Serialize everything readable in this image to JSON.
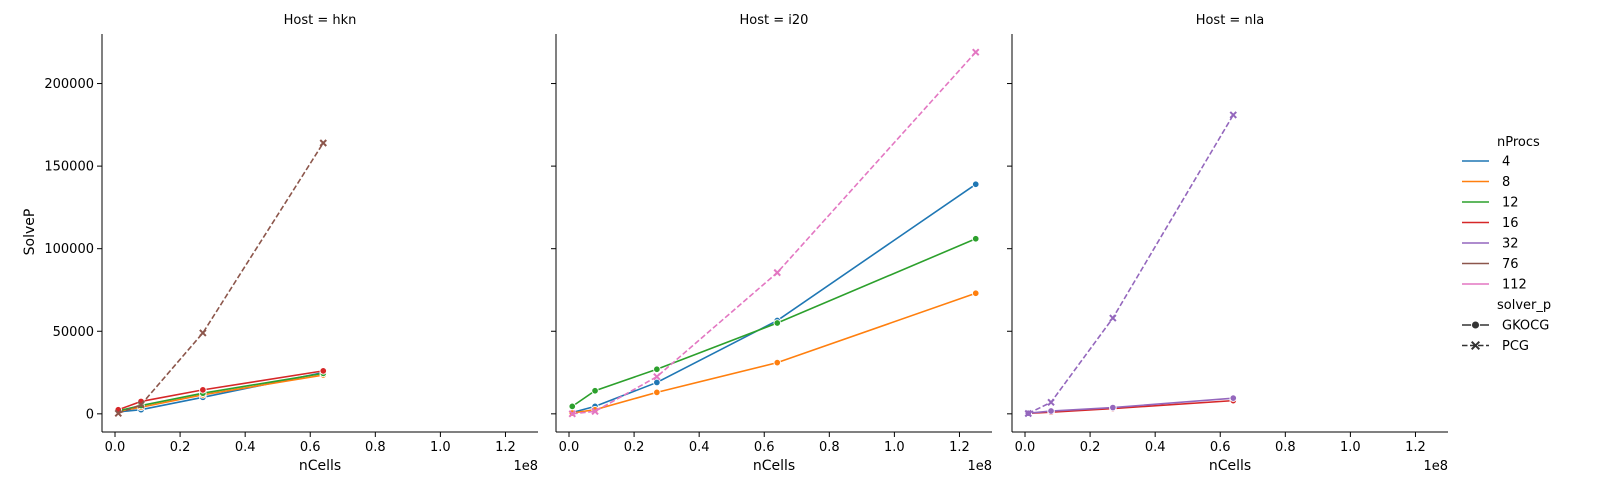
{
  "chart_data": {
    "type": "line",
    "xlabel": "nCells",
    "ylabel": "SolveP",
    "x_offset_text": "1e8",
    "x_ticks": [
      0,
      20000000,
      40000000,
      60000000,
      80000000,
      100000000,
      120000000
    ],
    "x_tick_labels": [
      "0.0",
      "0.2",
      "0.4",
      "0.6",
      "0.8",
      "1.0",
      "1.2"
    ],
    "y_ticks": [
      0,
      50000,
      100000,
      150000,
      200000
    ],
    "y_tick_labels": [
      "0",
      "50000",
      "100000",
      "150000",
      "200000"
    ],
    "xlim": [
      -4000000,
      130000000
    ],
    "ylim": [
      -11000,
      230000
    ],
    "legend": {
      "placement": "right",
      "hue_title": "nProcs",
      "hue_entries": [
        {
          "label": "4",
          "color": "#1f77b4"
        },
        {
          "label": "8",
          "color": "#ff7f0e"
        },
        {
          "label": "12",
          "color": "#2ca02c"
        },
        {
          "label": "16",
          "color": "#d62728"
        },
        {
          "label": "32",
          "color": "#9467bd"
        },
        {
          "label": "76",
          "color": "#8c564b"
        },
        {
          "label": "112",
          "color": "#e377c2"
        }
      ],
      "style_title": "solver_p",
      "style_entries": [
        {
          "label": "GKOCG",
          "marker": "circle",
          "dash": "solid"
        },
        {
          "label": "PCG",
          "marker": "x",
          "dash": "dashed"
        }
      ]
    },
    "panels": [
      {
        "title": "Host = hkn",
        "series": [
          {
            "nProcs": "4",
            "solver": "GKOCG",
            "color": "#1f77b4",
            "x": [
              1000000,
              8000000,
              27000000,
              64000000
            ],
            "y": [
              1200,
              2500,
              10000,
              25000
            ]
          },
          {
            "nProcs": "8",
            "solver": "GKOCG",
            "color": "#ff7f0e",
            "x": [
              1000000,
              8000000,
              27000000,
              64000000
            ],
            "y": [
              1500,
              4000,
              11500,
              23500
            ]
          },
          {
            "nProcs": "12",
            "solver": "GKOCG",
            "color": "#2ca02c",
            "x": [
              1000000,
              8000000,
              27000000,
              64000000
            ],
            "y": [
              1800,
              5000,
              12500,
              24500
            ]
          },
          {
            "nProcs": "16",
            "solver": "GKOCG",
            "color": "#d62728",
            "x": [
              1000000,
              8000000,
              27000000,
              64000000
            ],
            "y": [
              2500,
              7500,
              14500,
              26000
            ]
          },
          {
            "nProcs": "76",
            "solver": "PCG",
            "color": "#8c564b",
            "x": [
              1000000,
              8000000,
              27000000,
              64000000
            ],
            "y": [
              300,
              5500,
              49000,
              164000
            ]
          }
        ]
      },
      {
        "title": "Host = i20",
        "series": [
          {
            "nProcs": "4",
            "solver": "GKOCG",
            "color": "#1f77b4",
            "x": [
              1000000,
              8000000,
              27000000,
              64000000,
              125000000
            ],
            "y": [
              800,
              4500,
              19000,
              56500,
              139000
            ]
          },
          {
            "nProcs": "8",
            "solver": "GKOCG",
            "color": "#ff7f0e",
            "x": [
              1000000,
              8000000,
              27000000,
              64000000,
              125000000
            ],
            "y": [
              500,
              2500,
              13000,
              31000,
              73000
            ]
          },
          {
            "nProcs": "12",
            "solver": "GKOCG",
            "color": "#2ca02c",
            "x": [
              1000000,
              8000000,
              27000000,
              64000000,
              125000000
            ],
            "y": [
              4500,
              14000,
              27000,
              55000,
              106000
            ]
          },
          {
            "nProcs": "112",
            "solver": "PCG",
            "color": "#e377c2",
            "x": [
              1000000,
              8000000,
              27000000,
              64000000,
              125000000
            ],
            "y": [
              0,
              1500,
              22500,
              85500,
              219000
            ]
          }
        ]
      },
      {
        "title": "Host = nla",
        "series": [
          {
            "nProcs": "16",
            "solver": "GKOCG",
            "color": "#d62728",
            "x": [
              1000000,
              8000000,
              27000000,
              64000000
            ],
            "y": [
              300,
              1000,
              3200,
              8000
            ]
          },
          {
            "nProcs": "32",
            "solver": "GKOCG",
            "color": "#9467bd",
            "x": [
              1000000,
              8000000,
              27000000,
              64000000
            ],
            "y": [
              400,
              1700,
              3800,
              9500
            ]
          },
          {
            "nProcs": "32",
            "solver": "PCG",
            "color": "#9467bd",
            "x": [
              1000000,
              8000000,
              27000000,
              64000000
            ],
            "y": [
              200,
              7000,
              58000,
              181000
            ]
          }
        ]
      }
    ]
  }
}
